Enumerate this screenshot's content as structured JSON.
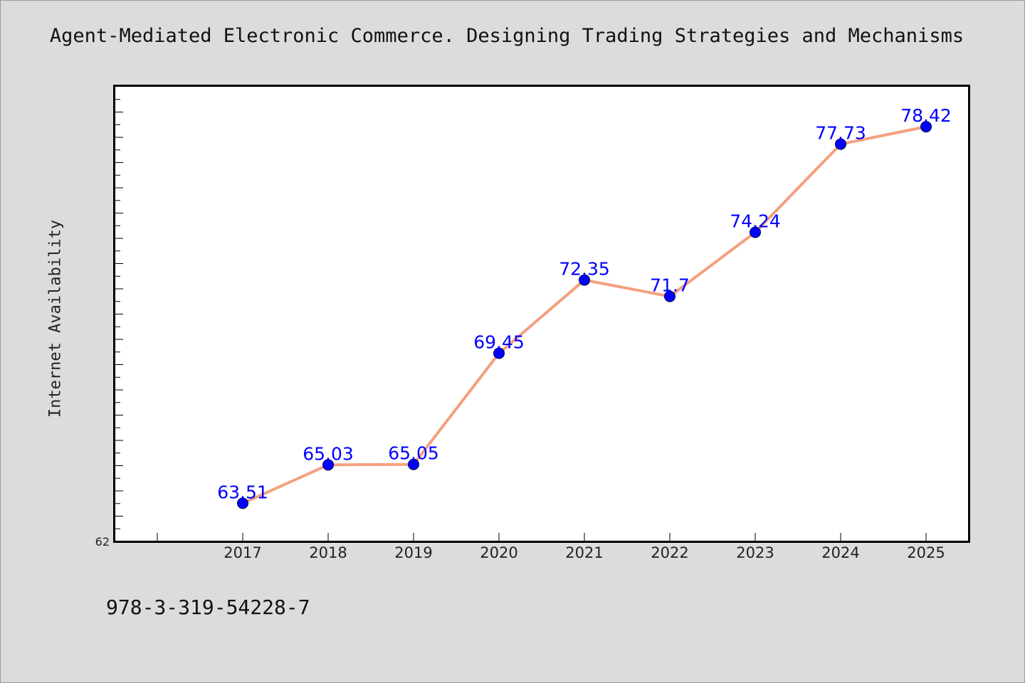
{
  "colors": {
    "background": "#dcdcdc",
    "plot_background": "#ffffff",
    "line": "#f4a07f",
    "marker": "#0000ff",
    "data_label": "#0000ff"
  },
  "chart_data": {
    "type": "line",
    "title": "Agent-Mediated Electronic Commerce. Designing Trading Strategies and Mechanisms",
    "xlabel": "",
    "ylabel": "Internet Availability",
    "categories": [
      "2017",
      "2018",
      "2019",
      "2020",
      "2021",
      "2022",
      "2023",
      "2024",
      "2025"
    ],
    "series": [
      {
        "values": [
          63.51,
          65.03,
          65.05,
          69.45,
          72.35,
          71.7,
          74.24,
          77.73,
          78.42
        ],
        "labels": [
          "63.51",
          "65.03",
          "65.05",
          "69.45",
          "72.35",
          "71.7",
          "74.24",
          "77.73",
          "78.42"
        ]
      }
    ],
    "ylim": [
      62,
      80
    ],
    "y_tick_labels": [
      "62"
    ],
    "grid": false,
    "legend": "none"
  },
  "footer": {
    "isbn": "978-3-319-54228-7"
  }
}
